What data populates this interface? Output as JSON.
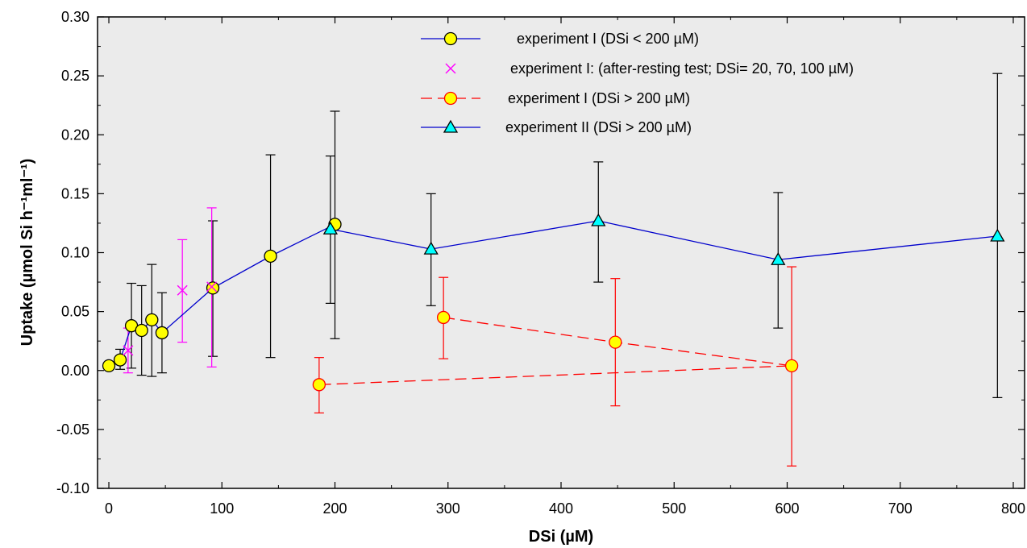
{
  "chart_data": {
    "type": "scatter",
    "xlabel": "DSi (µM)",
    "ylabel": "Uptake (µmol Si h⁻¹ml⁻¹)",
    "xlim": [
      -10,
      810
    ],
    "ylim": [
      -0.1,
      0.3
    ],
    "x_ticks": [
      0,
      100,
      200,
      300,
      400,
      500,
      600,
      700,
      800
    ],
    "y_ticks": [
      -0.1,
      -0.05,
      0.0,
      0.05,
      0.1,
      0.15,
      0.2,
      0.25,
      0.3
    ],
    "x_tick_labels": [
      "0",
      "100",
      "200",
      "300",
      "400",
      "500",
      "600",
      "700",
      "800"
    ],
    "y_tick_labels": [
      "-0.10",
      "-0.05",
      "0.00",
      "0.05",
      "0.10",
      "0.15",
      "0.20",
      "0.25",
      "0.30"
    ],
    "plot_background": "#ebebeb",
    "grid": false,
    "legend_position": "top-center",
    "series": [
      {
        "name": "experiment I (DSi < 200 µM)",
        "color": "#0000cc",
        "marker": "circle",
        "marker_fill": "#ffff00",
        "line": "solid",
        "error_color": "#000000",
        "points": [
          {
            "x": 0,
            "y": 0.004,
            "lo": 0.004,
            "hi": 0.004
          },
          {
            "x": 10,
            "y": 0.009,
            "lo": 0.001,
            "hi": 0.018
          },
          {
            "x": 20,
            "y": 0.038,
            "lo": 0.002,
            "hi": 0.074
          },
          {
            "x": 29,
            "y": 0.034,
            "lo": -0.004,
            "hi": 0.072
          },
          {
            "x": 38,
            "y": 0.043,
            "lo": -0.005,
            "hi": 0.09
          },
          {
            "x": 47,
            "y": 0.032,
            "lo": -0.002,
            "hi": 0.066
          },
          {
            "x": 92,
            "y": 0.07,
            "lo": 0.012,
            "hi": 0.127
          },
          {
            "x": 143,
            "y": 0.097,
            "lo": 0.011,
            "hi": 0.183
          },
          {
            "x": 200,
            "y": 0.124,
            "lo": 0.027,
            "hi": 0.22
          }
        ]
      },
      {
        "name": "experiment I: (after-resting test; DSi= 20, 70, 100 µM)",
        "color": "#ff00ff",
        "marker": "x",
        "line": "none",
        "error_color": "#ff00ff",
        "points": [
          {
            "x": 17,
            "y": 0.017,
            "lo": -0.002,
            "hi": 0.036
          },
          {
            "x": 65,
            "y": 0.068,
            "lo": 0.024,
            "hi": 0.111
          },
          {
            "x": 91,
            "y": 0.071,
            "lo": 0.003,
            "hi": 0.138
          }
        ]
      },
      {
        "name": "experiment I (DSi > 200 µM)",
        "color": "#ff0000",
        "marker": "circle",
        "marker_fill": "#ffff00",
        "line": "dashed",
        "error_color": "#ff0000",
        "points": [
          {
            "x": 296,
            "y": 0.045,
            "lo": 0.01,
            "hi": 0.079
          },
          {
            "x": 448,
            "y": 0.024,
            "lo": -0.03,
            "hi": 0.078
          },
          {
            "x": 604,
            "y": 0.004,
            "lo": -0.081,
            "hi": 0.088
          },
          {
            "x": 186,
            "y": -0.012,
            "lo": -0.036,
            "hi": 0.011
          }
        ]
      },
      {
        "name": "experiment  II (DSi > 200 µM)",
        "color": "#0000cc",
        "marker": "triangle",
        "marker_fill": "#00ffff",
        "line": "solid",
        "error_color": "#000000",
        "points": [
          {
            "x": 196,
            "y": 0.12,
            "lo": 0.057,
            "hi": 0.182
          },
          {
            "x": 285,
            "y": 0.103,
            "lo": 0.055,
            "hi": 0.15
          },
          {
            "x": 433,
            "y": 0.127,
            "lo": 0.075,
            "hi": 0.177
          },
          {
            "x": 592,
            "y": 0.094,
            "lo": 0.036,
            "hi": 0.151
          },
          {
            "x": 786,
            "y": 0.114,
            "lo": -0.023,
            "hi": 0.252
          }
        ]
      }
    ]
  }
}
